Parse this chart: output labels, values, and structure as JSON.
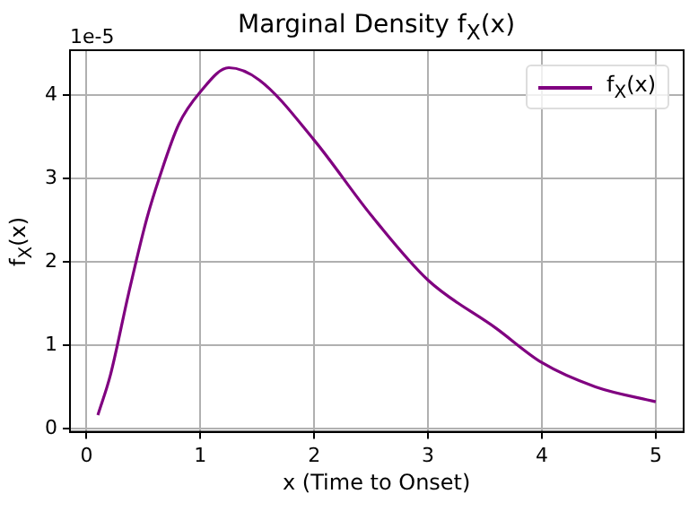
{
  "chart_data": {
    "type": "line",
    "title": "Marginal Density f$_{X}$(x)",
    "xlabel": "x (Time to Onset)",
    "ylabel": "f$_{X}$(x)",
    "annotations": [
      "1e-5"
    ],
    "series": [
      {
        "name": "f$_{X}$(x)",
        "color": "#800080",
        "x": [
          0.1,
          0.21,
          0.37,
          0.53,
          0.64,
          0.81,
          1.0,
          1.25,
          1.52,
          2.0,
          2.5,
          3.0,
          3.6,
          4.0,
          4.47,
          5.0
        ],
        "values": [
          0.16,
          0.64,
          1.62,
          2.52,
          3.01,
          3.65,
          4.04,
          4.33,
          4.18,
          3.46,
          2.56,
          1.78,
          1.2,
          0.79,
          0.5,
          0.32
        ]
      }
    ],
    "xlim": [
      -0.145,
      5.245
    ],
    "ylim": [
      -0.04,
      4.54
    ],
    "xticks": [
      0,
      1,
      2,
      3,
      4,
      5
    ],
    "yticks": [
      0,
      1,
      2,
      3,
      4
    ],
    "grid": true,
    "legend": "top right",
    "marker": "none",
    "line_style": "solid"
  }
}
